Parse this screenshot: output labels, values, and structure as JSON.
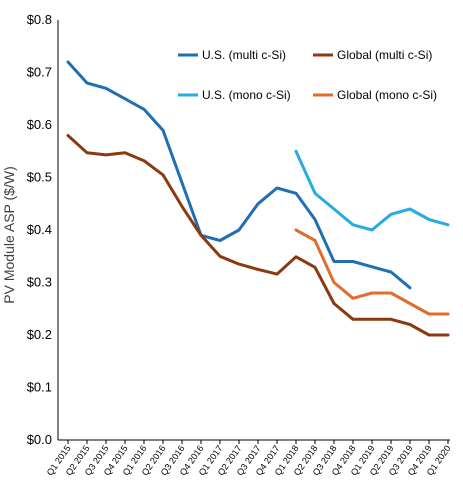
{
  "chart_data": {
    "type": "line",
    "title": "",
    "xlabel": "",
    "ylabel": "PV Module ASP ($/W)",
    "ylim": [
      0,
      0.8
    ],
    "yticks": [
      0,
      0.1,
      0.2,
      0.3,
      0.4,
      0.5,
      0.6,
      0.7,
      0.8
    ],
    "ytick_labels": [
      "$0.0",
      "$0.1",
      "$0.2",
      "$0.3",
      "$0.4",
      "$0.5",
      "$0.6",
      "$0.7",
      "$0.8"
    ],
    "categories": [
      "Q1 2015",
      "Q2 2015",
      "Q3 2015",
      "Q4 2015",
      "Q1 2016",
      "Q2 2016",
      "Q3 2016",
      "Q4 2016",
      "Q1 2017",
      "Q2 2017",
      "Q3 2017",
      "Q4 2017",
      "Q1 2018",
      "Q2 2018",
      "Q3 2018",
      "Q4 2018",
      "Q1 2019",
      "Q2 2019",
      "Q3 2019",
      "Q4 2019",
      "Q1 2020"
    ],
    "grid": false,
    "legend_position": "top-right",
    "series": [
      {
        "name": "U.S. (multi c-Si)",
        "color": "#1f6fb2",
        "values": [
          0.72,
          0.68,
          0.67,
          0.65,
          0.63,
          0.59,
          0.49,
          0.39,
          0.38,
          0.4,
          0.45,
          0.48,
          0.47,
          0.42,
          0.34,
          0.34,
          0.33,
          0.32,
          0.29,
          null,
          null
        ]
      },
      {
        "name": "Global (multi c-Si)",
        "color": "#8b3a0f",
        "values": [
          0.58,
          0.547,
          0.543,
          0.547,
          0.532,
          0.505,
          0.445,
          0.39,
          0.35,
          0.335,
          0.325,
          0.316,
          0.349,
          0.329,
          0.26,
          0.23,
          0.23,
          0.23,
          0.22,
          0.2,
          0.2
        ]
      },
      {
        "name": "U.S. (mono c-Si)",
        "color": "#2aaae2",
        "values": [
          null,
          null,
          null,
          null,
          null,
          null,
          null,
          null,
          null,
          null,
          null,
          null,
          0.55,
          0.47,
          0.44,
          0.41,
          0.4,
          0.43,
          0.44,
          0.42,
          0.41
        ]
      },
      {
        "name": "Global (mono c-Si)",
        "color": "#e26b2e",
        "values": [
          null,
          null,
          null,
          null,
          null,
          null,
          null,
          null,
          null,
          null,
          null,
          null,
          0.4,
          0.38,
          0.3,
          0.27,
          0.28,
          0.28,
          0.26,
          0.24,
          0.24
        ]
      }
    ]
  }
}
